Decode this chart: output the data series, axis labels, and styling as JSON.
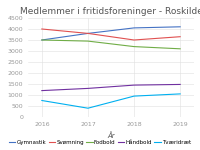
{
  "title": "Medlemmer i fritidsforeninger - Roskilde",
  "xlabel": "År",
  "years": [
    2016,
    2017,
    2018,
    2019
  ],
  "series": {
    "Gymnastik": [
      3500,
      3800,
      4050,
      4100
    ],
    "Svømning": [
      4000,
      3800,
      3500,
      3650
    ],
    "Fodbold": [
      3500,
      3450,
      3200,
      3100
    ],
    "Håndbold": [
      1200,
      1300,
      1450,
      1480
    ],
    "Tværidræt": [
      750,
      400,
      950,
      1050
    ]
  },
  "colors": {
    "Gymnastik": "#4472c4",
    "Svømning": "#e05050",
    "Fodbold": "#70ad47",
    "Håndbold": "#7030a0",
    "Tværidræt": "#00b0f0"
  },
  "ylim": [
    0,
    4500
  ],
  "yticks": [
    0,
    500,
    1000,
    1500,
    2000,
    2500,
    3000,
    3500,
    4000,
    4500
  ],
  "background_color": "#ffffff",
  "title_fontsize": 6.5,
  "axis_fontsize": 5,
  "tick_fontsize": 4.5,
  "legend_fontsize": 4.0,
  "linewidth": 0.8
}
